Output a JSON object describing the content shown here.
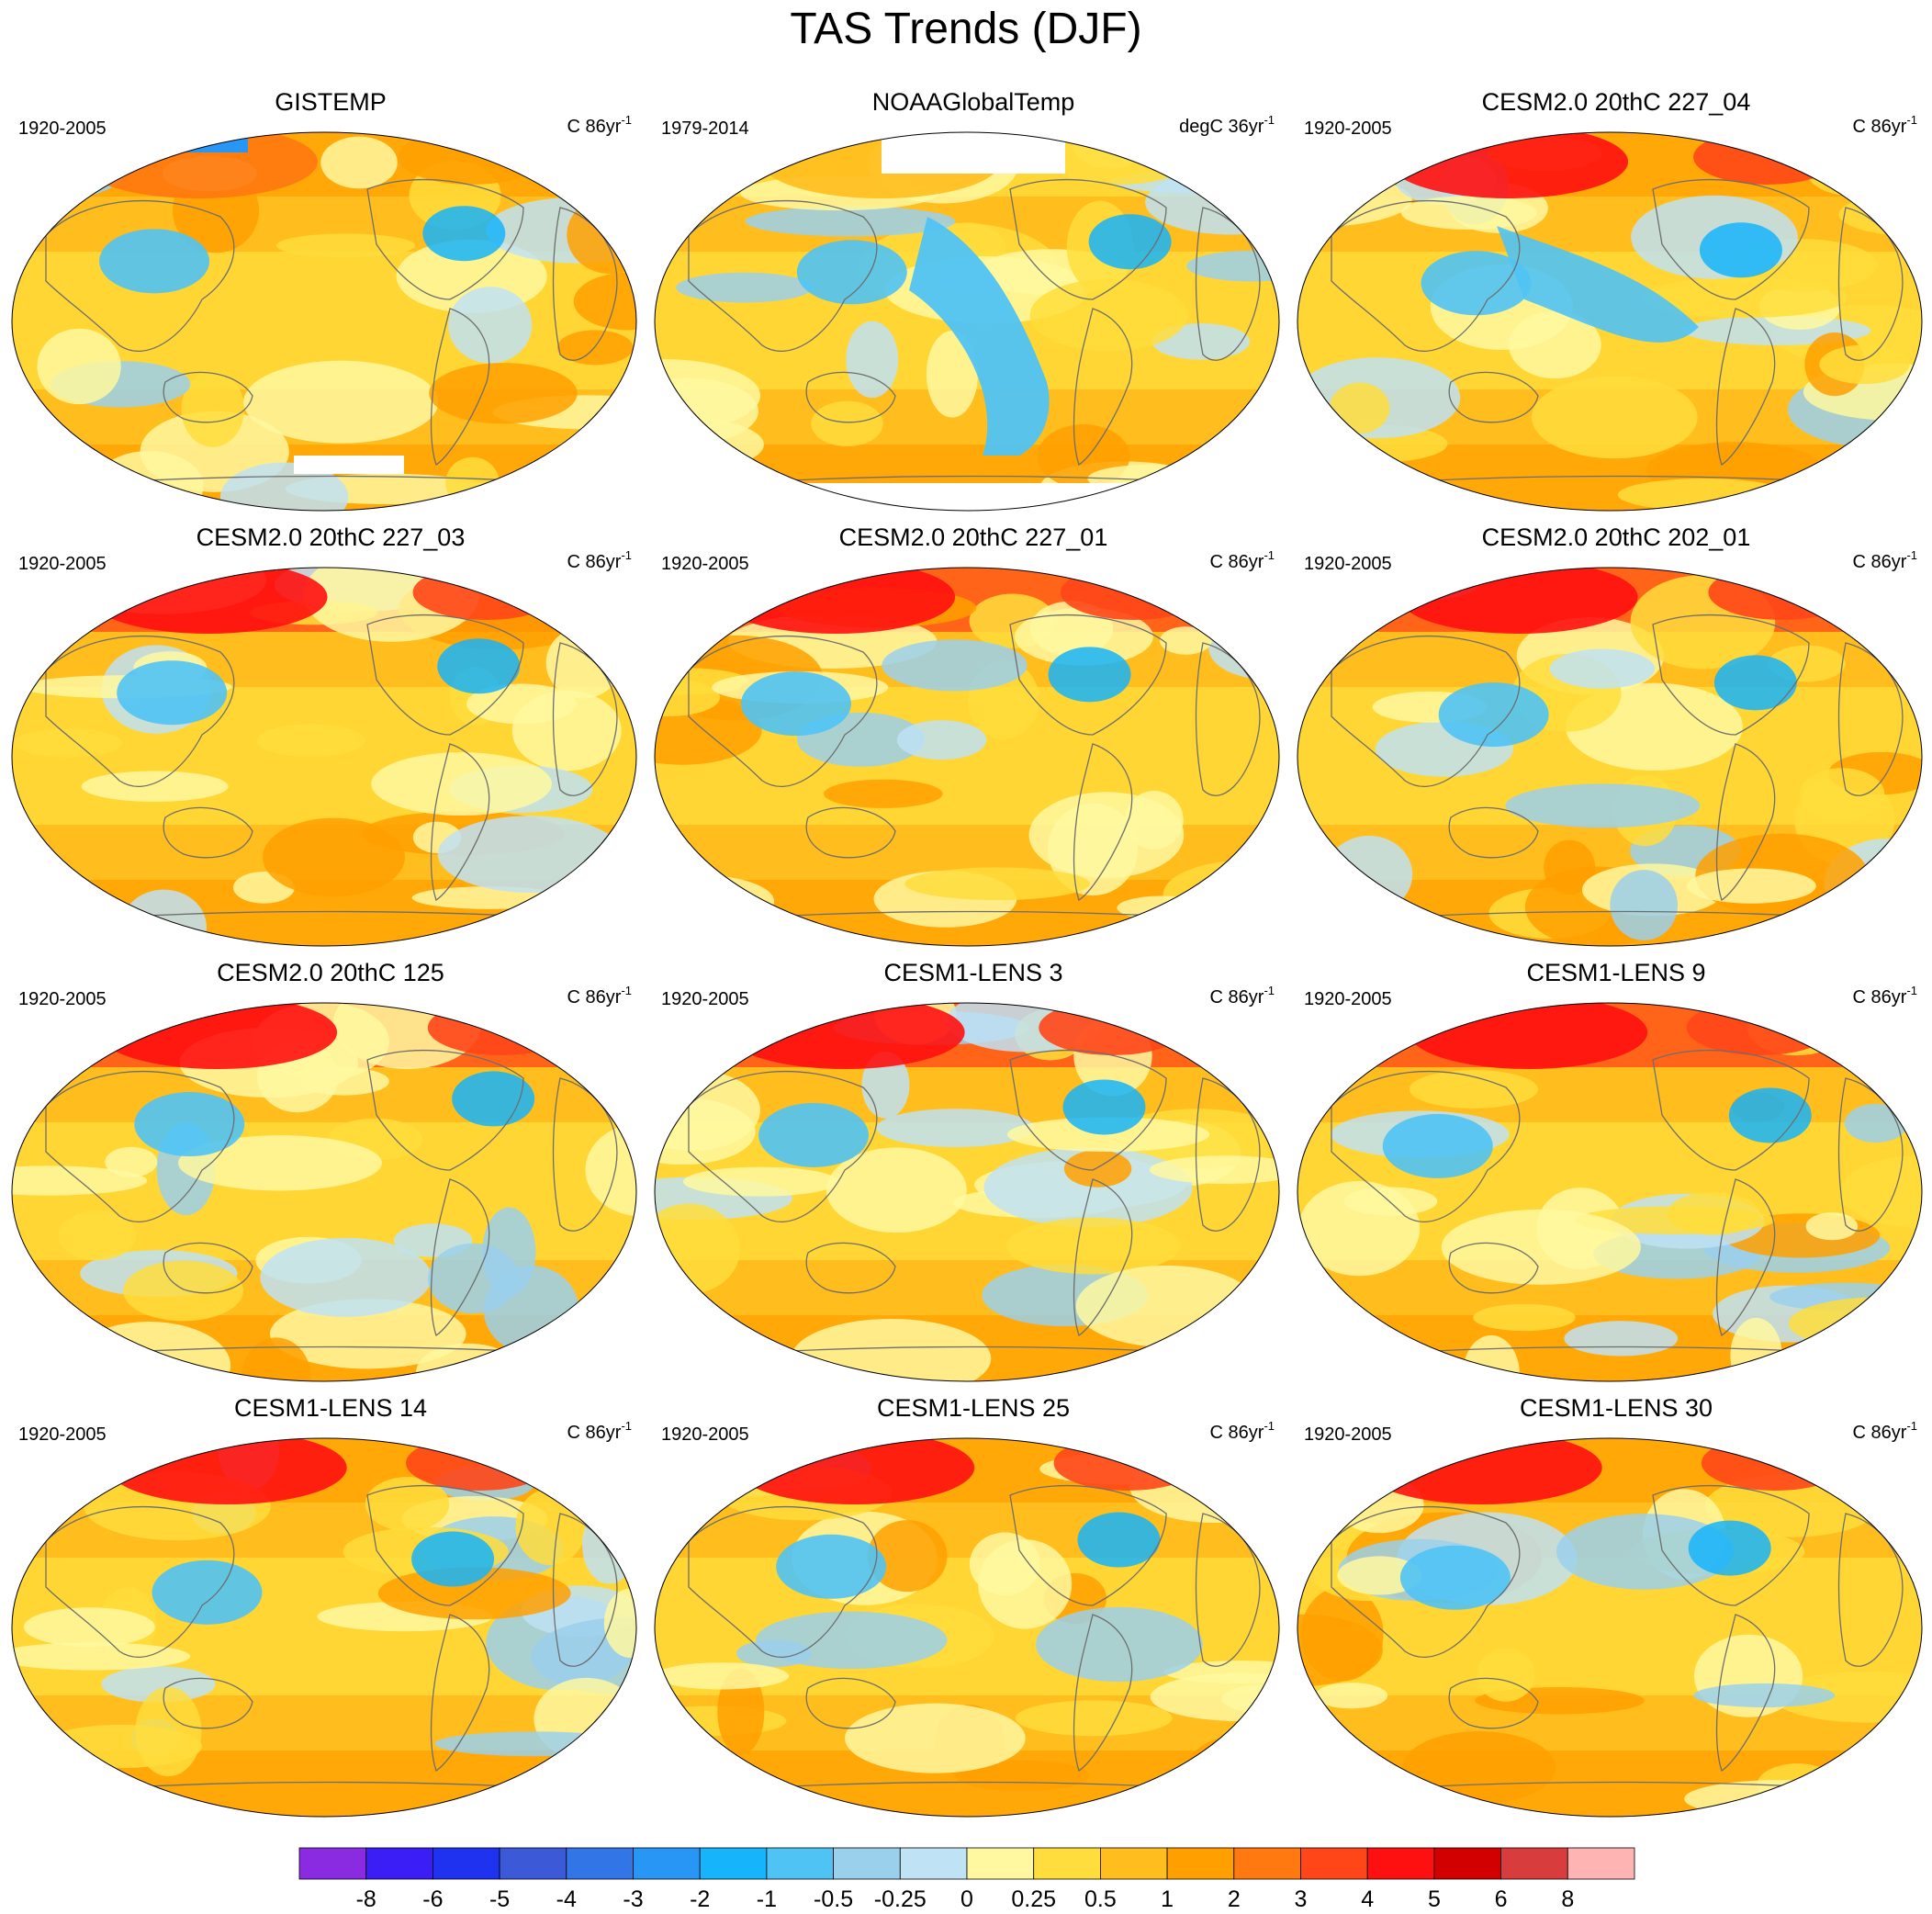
{
  "title": "TAS Trends (DJF)",
  "chart_data": {
    "type": "heatmap",
    "title": "TAS Trends (DJF)",
    "projection": "Robinson-like global map, centered on the Pacific",
    "panels": [
      {
        "title": "GISTEMP",
        "period": "1920-2005",
        "units": "C 86yr",
        "units_exp": "-1"
      },
      {
        "title": "NOAAGlobalTemp",
        "period": "1979-2014",
        "units": "degC 36yr",
        "units_exp": "-1"
      },
      {
        "title": "CESM2.0 20thC 227_04",
        "period": "1920-2005",
        "units": "C 86yr",
        "units_exp": "-1"
      },
      {
        "title": "CESM2.0 20thC 227_03",
        "period": "1920-2005",
        "units": "C 86yr",
        "units_exp": "-1"
      },
      {
        "title": "CESM2.0 20thC 227_01",
        "period": "1920-2005",
        "units": "C 86yr",
        "units_exp": "-1"
      },
      {
        "title": "CESM2.0 20thC 202_01",
        "period": "1920-2005",
        "units": "C 86yr",
        "units_exp": "-1"
      },
      {
        "title": "CESM2.0 20thC 125",
        "period": "1920-2005",
        "units": "C 86yr",
        "units_exp": "-1"
      },
      {
        "title": "CESM1-LENS 3",
        "period": "1920-2005",
        "units": "C 86yr",
        "units_exp": "-1"
      },
      {
        "title": "CESM1-LENS 9",
        "period": "1920-2005",
        "units": "C 86yr",
        "units_exp": "-1"
      },
      {
        "title": "CESM1-LENS 14",
        "period": "1920-2005",
        "units": "C 86yr",
        "units_exp": "-1"
      },
      {
        "title": "CESM1-LENS 25",
        "period": "1920-2005",
        "units": "C 86yr",
        "units_exp": "-1"
      },
      {
        "title": "CESM1-LENS 30",
        "period": "1920-2005",
        "units": "C 86yr",
        "units_exp": "-1"
      }
    ],
    "colorbar": {
      "levels": [
        "-8",
        "-6",
        "-5",
        "-4",
        "-3",
        "-2",
        "-1",
        "-0.5",
        "-0.25",
        "0",
        "0.25",
        "0.5",
        "1",
        "2",
        "3",
        "4",
        "5",
        "6",
        "8"
      ],
      "colors": [
        "#8a2be2",
        "#3a1ef5",
        "#1e32f0",
        "#3c5ad8",
        "#3275e6",
        "#2896f5",
        "#16b4fa",
        "#50c3f5",
        "#9bd0ec",
        "#bfe2f4",
        "#fff8a0",
        "#ffdd3c",
        "#ffbe1e",
        "#ffa000",
        "#ff7810",
        "#ff4618",
        "#ff1010",
        "#d20000",
        "#d83c3c",
        "#ffb4b4"
      ]
    }
  }
}
